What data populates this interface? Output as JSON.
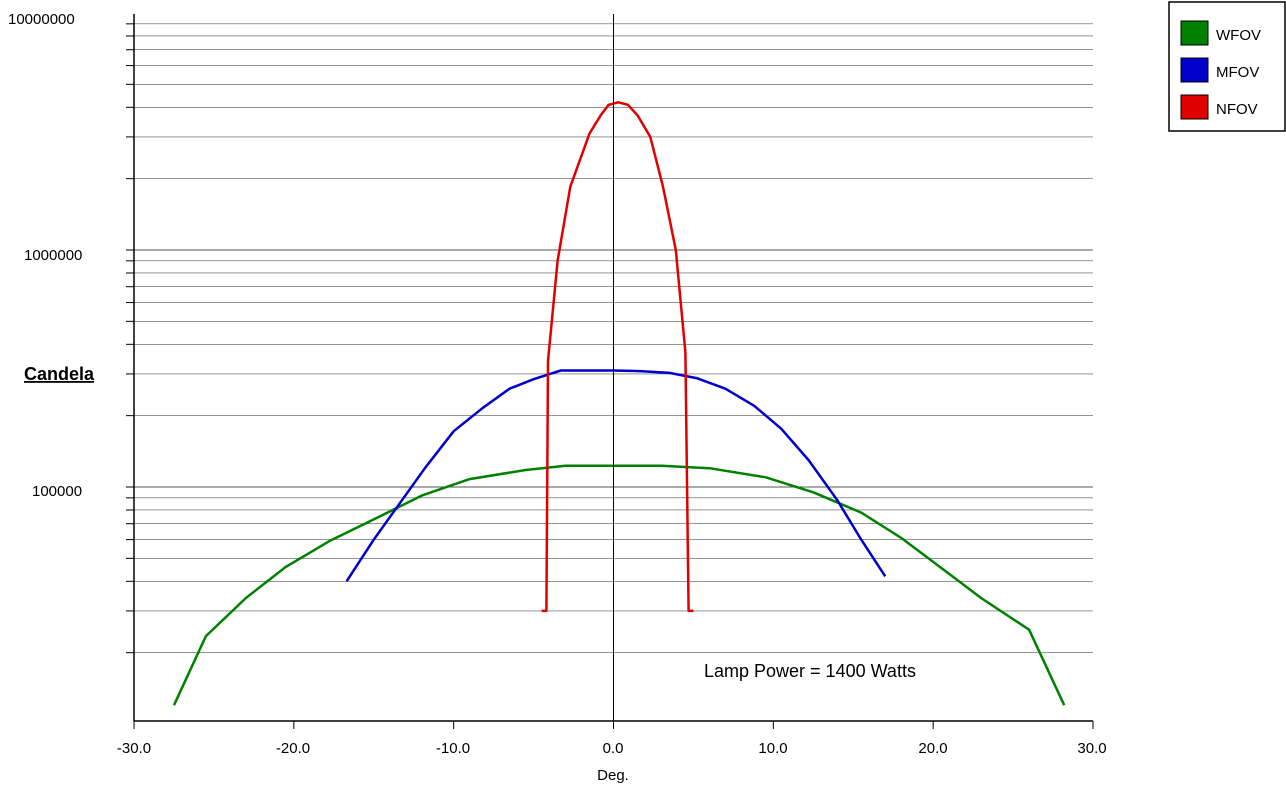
{
  "chart_data": {
    "type": "line",
    "title": "",
    "xlabel": "Deg.",
    "ylabel": "Candela",
    "xlim": [
      -30,
      30
    ],
    "ylim": [
      12000,
      10000000
    ],
    "yscale": "log",
    "grid": true,
    "legend_position": "top-right",
    "x_ticks": [
      "-30.0",
      "-20.0",
      "-10.0",
      "0.0",
      "10.0",
      "20.0",
      "30.0"
    ],
    "y_ticks": [
      "100000",
      "1000000",
      "10000000"
    ],
    "annotation": "Lamp Power = 1400 Watts",
    "series": [
      {
        "name": "WFOV",
        "color": "#008000",
        "points": [
          [
            -27.5,
            12000
          ],
          [
            -25.5,
            23500
          ],
          [
            -23.0,
            34000
          ],
          [
            -20.5,
            46000
          ],
          [
            -17.8,
            59000
          ],
          [
            -15.0,
            73000
          ],
          [
            -12.0,
            92000
          ],
          [
            -9.0,
            108000
          ],
          [
            -5.5,
            118000
          ],
          [
            -3.0,
            123000
          ],
          [
            0.0,
            123000
          ],
          [
            3.0,
            123000
          ],
          [
            6.0,
            120000
          ],
          [
            9.5,
            110000
          ],
          [
            12.5,
            95000
          ],
          [
            15.5,
            78000
          ],
          [
            18.0,
            61000
          ],
          [
            20.8,
            44000
          ],
          [
            23.0,
            34000
          ],
          [
            26.0,
            25000
          ],
          [
            28.2,
            12000
          ]
        ]
      },
      {
        "name": "MFOV",
        "color": "#0000cc",
        "points": [
          [
            -16.7,
            40000
          ],
          [
            -15.0,
            60000
          ],
          [
            -13.5,
            83000
          ],
          [
            -11.8,
            120000
          ],
          [
            -10.0,
            172000
          ],
          [
            -8.2,
            215000
          ],
          [
            -6.5,
            260000
          ],
          [
            -5.0,
            285000
          ],
          [
            -3.3,
            310000
          ],
          [
            0.0,
            310000
          ],
          [
            1.8,
            308000
          ],
          [
            3.5,
            303000
          ],
          [
            5.2,
            288000
          ],
          [
            7.0,
            260000
          ],
          [
            8.8,
            220000
          ],
          [
            10.5,
            176000
          ],
          [
            12.2,
            130000
          ],
          [
            14.0,
            88000
          ],
          [
            15.5,
            60000
          ],
          [
            17.0,
            42000
          ]
        ]
      },
      {
        "name": "NFOV",
        "color": "#e00000",
        "points": [
          [
            -4.5,
            30000
          ],
          [
            -4.2,
            30000
          ],
          [
            -4.1,
            340000
          ],
          [
            -3.5,
            900000
          ],
          [
            -2.7,
            1850000
          ],
          [
            -1.5,
            3100000
          ],
          [
            -0.8,
            3700000
          ],
          [
            -0.3,
            4100000
          ],
          [
            0.3,
            4200000
          ],
          [
            0.9,
            4100000
          ],
          [
            1.5,
            3700000
          ],
          [
            2.3,
            3000000
          ],
          [
            3.1,
            1850000
          ],
          [
            3.9,
            1000000
          ],
          [
            4.5,
            370000
          ],
          [
            4.7,
            30000
          ],
          [
            5.0,
            30000
          ]
        ]
      }
    ]
  }
}
